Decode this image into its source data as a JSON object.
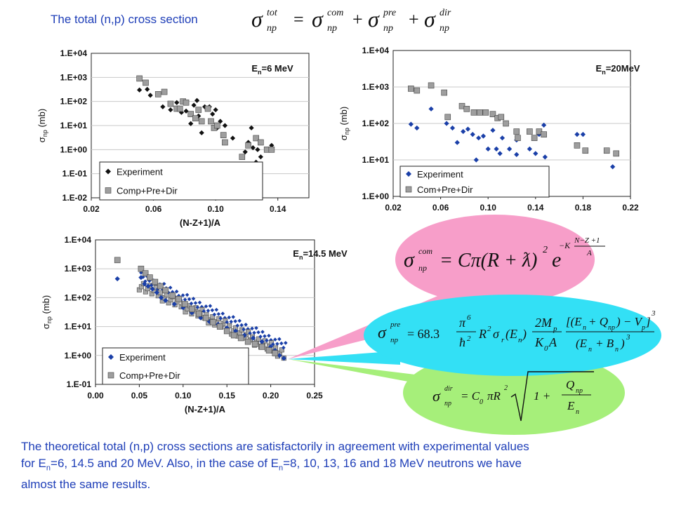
{
  "title": "The total (n,p) cross section",
  "title_equation": {
    "sigma": "σ",
    "np": "np",
    "tot": "tot",
    "com": "com",
    "pre": "pre",
    "dir": "dir",
    "eq": "=",
    "plus": "+"
  },
  "footer": {
    "line1": "The theoretical total (n,p) cross sections are satisfactorily in agreement with experimental values",
    "line2_a": "for E",
    "line2_sub": "n",
    "line2_b": "=6, 14.5 and 20 MeV. Also, in the case of E",
    "line2_sub2": "n",
    "line2_c": "=8, 10, 13, 16 and 18 MeV neutrons we have",
    "line3": "almost the same results."
  },
  "formulas": {
    "com": {
      "lhs": "σ",
      "lhs_sup": "com",
      "lhs_sub": "np",
      "rhs": "= Cπ(R + ƛ)",
      "sq": "2",
      "e": "e",
      "exp_k": "−K",
      "exp_num": "N−Z +1",
      "exp_den": "A",
      "color": "#f79ec9"
    },
    "pre": {
      "lhs": "σ",
      "lhs_sup": "pre",
      "lhs_sub": "np",
      "eq": "= 68.3",
      "pi6": "π",
      "pi_exp": "6",
      "hbar": "ħ",
      "hbar_exp": "2",
      "r2": "R",
      "r2_exp": "2",
      "sig_r": "σ",
      "sig_r_sub": "r",
      "en": "(E",
      "en_sub": "n",
      "en_close": ")",
      "num2": "2M",
      "num2_sub": "p",
      "den2": "K",
      "den2_sub": "0",
      "den2_tail": "A",
      "num3": "[(E",
      "num3_sub1": "n",
      "num3_mid": "+ Q",
      "num3_sub2": "np",
      "num3_tail": ") − V",
      "num3_sub3": "p",
      "num3_close": "]",
      "num3_exp": "3",
      "den3": "(E",
      "den3_sub1": "n",
      "den3_mid": "+ B",
      "den3_sub2": "n",
      "den3_close": ")",
      "den3_exp": "3",
      "color": "#33e0f5"
    },
    "dir": {
      "lhs": "σ",
      "lhs_sup": "dir",
      "lhs_sub": "np",
      "eq": "= C",
      "c_sub": "0",
      "pir": "πR",
      "r_exp": "2",
      "one": "1 +",
      "q": "Q",
      "q_sub": "np",
      "e": "E",
      "e_sub": "n",
      "color": "#a6ef7a"
    }
  },
  "chart_data": [
    {
      "id": "en6",
      "type": "scatter",
      "title": "E",
      "title_sub": "n",
      "title_tail": "=6 MeV",
      "xlabel": "(N-Z+1)/A",
      "ylabel": "σ",
      "ylabel_sub": "np",
      "ylabel_tail": " (mb)",
      "log_y": true,
      "xlim": [
        0.02,
        0.16
      ],
      "ylim_exp": [
        -2,
        4
      ],
      "x_ticks": [
        "0.02",
        "0.06",
        "0.10",
        "0.14"
      ],
      "x_tick_values": [
        0.02,
        0.06,
        0.1,
        0.14
      ],
      "y_ticks": [
        "1.E-02",
        "1.E-01",
        "1.E+00",
        "1.E+01",
        "1.E+02",
        "1.E+03",
        "1.E+04"
      ],
      "legend": "bottom-left",
      "series": [
        {
          "name": "Experiment",
          "marker": "diamond",
          "color": "#111111",
          "points": [
            [
              0.051,
              300
            ],
            [
              0.056,
              320
            ],
            [
              0.058,
              180
            ],
            [
              0.066,
              60
            ],
            [
              0.071,
              45
            ],
            [
              0.075,
              90
            ],
            [
              0.078,
              35
            ],
            [
              0.081,
              40
            ],
            [
              0.084,
              12
            ],
            [
              0.086,
              70
            ],
            [
              0.088,
              110
            ],
            [
              0.089,
              25
            ],
            [
              0.091,
              5
            ],
            [
              0.093,
              60
            ],
            [
              0.096,
              60
            ],
            [
              0.098,
              30
            ],
            [
              0.1,
              45
            ],
            [
              0.101,
              8
            ],
            [
              0.103,
              15
            ],
            [
              0.106,
              10
            ],
            [
              0.111,
              3
            ],
            [
              0.119,
              0.8
            ],
            [
              0.121,
              2
            ],
            [
              0.123,
              8
            ],
            [
              0.124,
              1.2
            ],
            [
              0.126,
              0.3
            ],
            [
              0.127,
              1
            ],
            [
              0.129,
              0.5
            ],
            [
              0.133,
              1
            ],
            [
              0.136,
              1.5
            ]
          ]
        },
        {
          "name": "Comp+Pre+Dir",
          "marker": "square",
          "color": "#9e9e9e",
          "points": [
            [
              0.051,
              900
            ],
            [
              0.055,
              600
            ],
            [
              0.063,
              200
            ],
            [
              0.067,
              250
            ],
            [
              0.071,
              80
            ],
            [
              0.075,
              50
            ],
            [
              0.077,
              50
            ],
            [
              0.079,
              100
            ],
            [
              0.081,
              90
            ],
            [
              0.084,
              30
            ],
            [
              0.087,
              20
            ],
            [
              0.089,
              45
            ],
            [
              0.091,
              15
            ],
            [
              0.095,
              50
            ],
            [
              0.097,
              15
            ],
            [
              0.099,
              8
            ],
            [
              0.101,
              10
            ],
            [
              0.105,
              4
            ],
            [
              0.106,
              2
            ],
            [
              0.117,
              0.5
            ],
            [
              0.121,
              1.5
            ],
            [
              0.126,
              3
            ],
            [
              0.129,
              2
            ],
            [
              0.133,
              1
            ],
            [
              0.136,
              1
            ]
          ]
        }
      ]
    },
    {
      "id": "en20",
      "type": "scatter",
      "title": "E",
      "title_sub": "n",
      "title_tail": "=20MeV",
      "xlabel": "(N-Z+1)/A",
      "ylabel": "σ",
      "ylabel_sub": "np",
      "ylabel_tail": " (mb)",
      "log_y": true,
      "xlim": [
        0.02,
        0.22
      ],
      "ylim_exp": [
        0,
        4
      ],
      "x_ticks": [
        "0.02",
        "0.06",
        "0.10",
        "0.14",
        "0.18",
        "0.22"
      ],
      "x_tick_values": [
        0.02,
        0.06,
        0.1,
        0.14,
        0.18,
        0.22
      ],
      "y_ticks": [
        "1.E+00",
        "1.E+01",
        "1.E+02",
        "1.E+03",
        "1.E+04"
      ],
      "legend": "bottom-left",
      "series": [
        {
          "name": "Experiment",
          "marker": "diamond",
          "color": "#1a3fa8",
          "points": [
            [
              0.035,
              95
            ],
            [
              0.04,
              75
            ],
            [
              0.052,
              250
            ],
            [
              0.065,
              100
            ],
            [
              0.07,
              75
            ],
            [
              0.074,
              30
            ],
            [
              0.079,
              60
            ],
            [
              0.083,
              70
            ],
            [
              0.087,
              50
            ],
            [
              0.09,
              10
            ],
            [
              0.092,
              40
            ],
            [
              0.096,
              45
            ],
            [
              0.1,
              20
            ],
            [
              0.104,
              65
            ],
            [
              0.107,
              20
            ],
            [
              0.11,
              15
            ],
            [
              0.112,
              40
            ],
            [
              0.118,
              20
            ],
            [
              0.124,
              35
            ],
            [
              0.124,
              14
            ],
            [
              0.135,
              20
            ],
            [
              0.14,
              15
            ],
            [
              0.143,
              50
            ],
            [
              0.147,
              90
            ],
            [
              0.148,
              12
            ],
            [
              0.175,
              50
            ],
            [
              0.18,
              50
            ],
            [
              0.205,
              6.5
            ]
          ]
        },
        {
          "name": "Com+Pre+Dir",
          "marker": "square",
          "color": "#9e9e9e",
          "points": [
            [
              0.035,
              900
            ],
            [
              0.04,
              800
            ],
            [
              0.052,
              1100
            ],
            [
              0.063,
              700
            ],
            [
              0.066,
              150
            ],
            [
              0.078,
              300
            ],
            [
              0.082,
              250
            ],
            [
              0.088,
              200
            ],
            [
              0.093,
              200
            ],
            [
              0.098,
              200
            ],
            [
              0.104,
              180
            ],
            [
              0.108,
              140
            ],
            [
              0.111,
              150
            ],
            [
              0.115,
              100
            ],
            [
              0.124,
              60
            ],
            [
              0.125,
              40
            ],
            [
              0.135,
              60
            ],
            [
              0.139,
              40
            ],
            [
              0.143,
              60
            ],
            [
              0.147,
              50
            ],
            [
              0.175,
              25
            ],
            [
              0.182,
              18
            ],
            [
              0.2,
              18
            ],
            [
              0.208,
              15
            ]
          ]
        }
      ]
    },
    {
      "id": "en145",
      "type": "scatter",
      "title": "E",
      "title_sub": "n",
      "title_tail": "=14.5 MeV",
      "xlabel": "(N-Z+1)/A",
      "ylabel": "σ",
      "ylabel_sub": "np",
      "ylabel_tail": " (mb)",
      "log_y": true,
      "xlim": [
        0.0,
        0.25
      ],
      "ylim_exp": [
        -1,
        4
      ],
      "x_ticks": [
        "0.00",
        "0.05",
        "0.10",
        "0.15",
        "0.20",
        "0.25"
      ],
      "x_tick_values": [
        0.0,
        0.05,
        0.1,
        0.15,
        0.2,
        0.25
      ],
      "y_ticks": [
        "1.E-01",
        "1.E+00",
        "1.E+01",
        "1.E+02",
        "1.E+03",
        "1.E+04"
      ],
      "legend": "bottom-left",
      "trend": {
        "x_start": 0.05,
        "log_start": 2.6,
        "x_end": 0.215,
        "log_end": 0.2
      },
      "series": [
        {
          "name": "Experiment",
          "marker": "diamond",
          "color": "#1a3fa8",
          "points": [
            [
              0.025,
              450
            ],
            [
              0.052,
              500
            ],
            [
              0.056,
              300
            ],
            [
              0.06,
              250
            ],
            [
              0.065,
              200
            ],
            [
              0.07,
              150
            ],
            [
              0.075,
              100
            ],
            [
              0.08,
              80
            ],
            [
              0.09,
              60
            ],
            [
              0.1,
              45
            ],
            [
              0.11,
              30
            ],
            [
              0.12,
              20
            ],
            [
              0.13,
              15
            ],
            [
              0.14,
              12
            ],
            [
              0.15,
              9
            ],
            [
              0.16,
              7
            ],
            [
              0.17,
              5
            ],
            [
              0.18,
              4
            ],
            [
              0.19,
              3
            ],
            [
              0.2,
              2
            ],
            [
              0.205,
              1.5
            ],
            [
              0.21,
              1
            ],
            [
              0.215,
              0.8
            ]
          ]
        },
        {
          "name": "Comp+Pre+Dir",
          "marker": "square",
          "color": "#9e9e9e",
          "points": [
            [
              0.025,
              2000
            ],
            [
              0.052,
              1000
            ],
            [
              0.057,
              700
            ],
            [
              0.062,
              500
            ],
            [
              0.068,
              350
            ],
            [
              0.074,
              250
            ],
            [
              0.08,
              180
            ],
            [
              0.088,
              120
            ],
            [
              0.095,
              90
            ],
            [
              0.102,
              60
            ],
            [
              0.11,
              40
            ],
            [
              0.118,
              28
            ],
            [
              0.126,
              20
            ],
            [
              0.134,
              14
            ],
            [
              0.142,
              10
            ],
            [
              0.15,
              7
            ],
            [
              0.158,
              5
            ],
            [
              0.166,
              4
            ],
            [
              0.174,
              3
            ],
            [
              0.182,
              2.5
            ],
            [
              0.19,
              2
            ],
            [
              0.198,
              1.5
            ],
            [
              0.205,
              1.2
            ]
          ]
        }
      ]
    }
  ]
}
